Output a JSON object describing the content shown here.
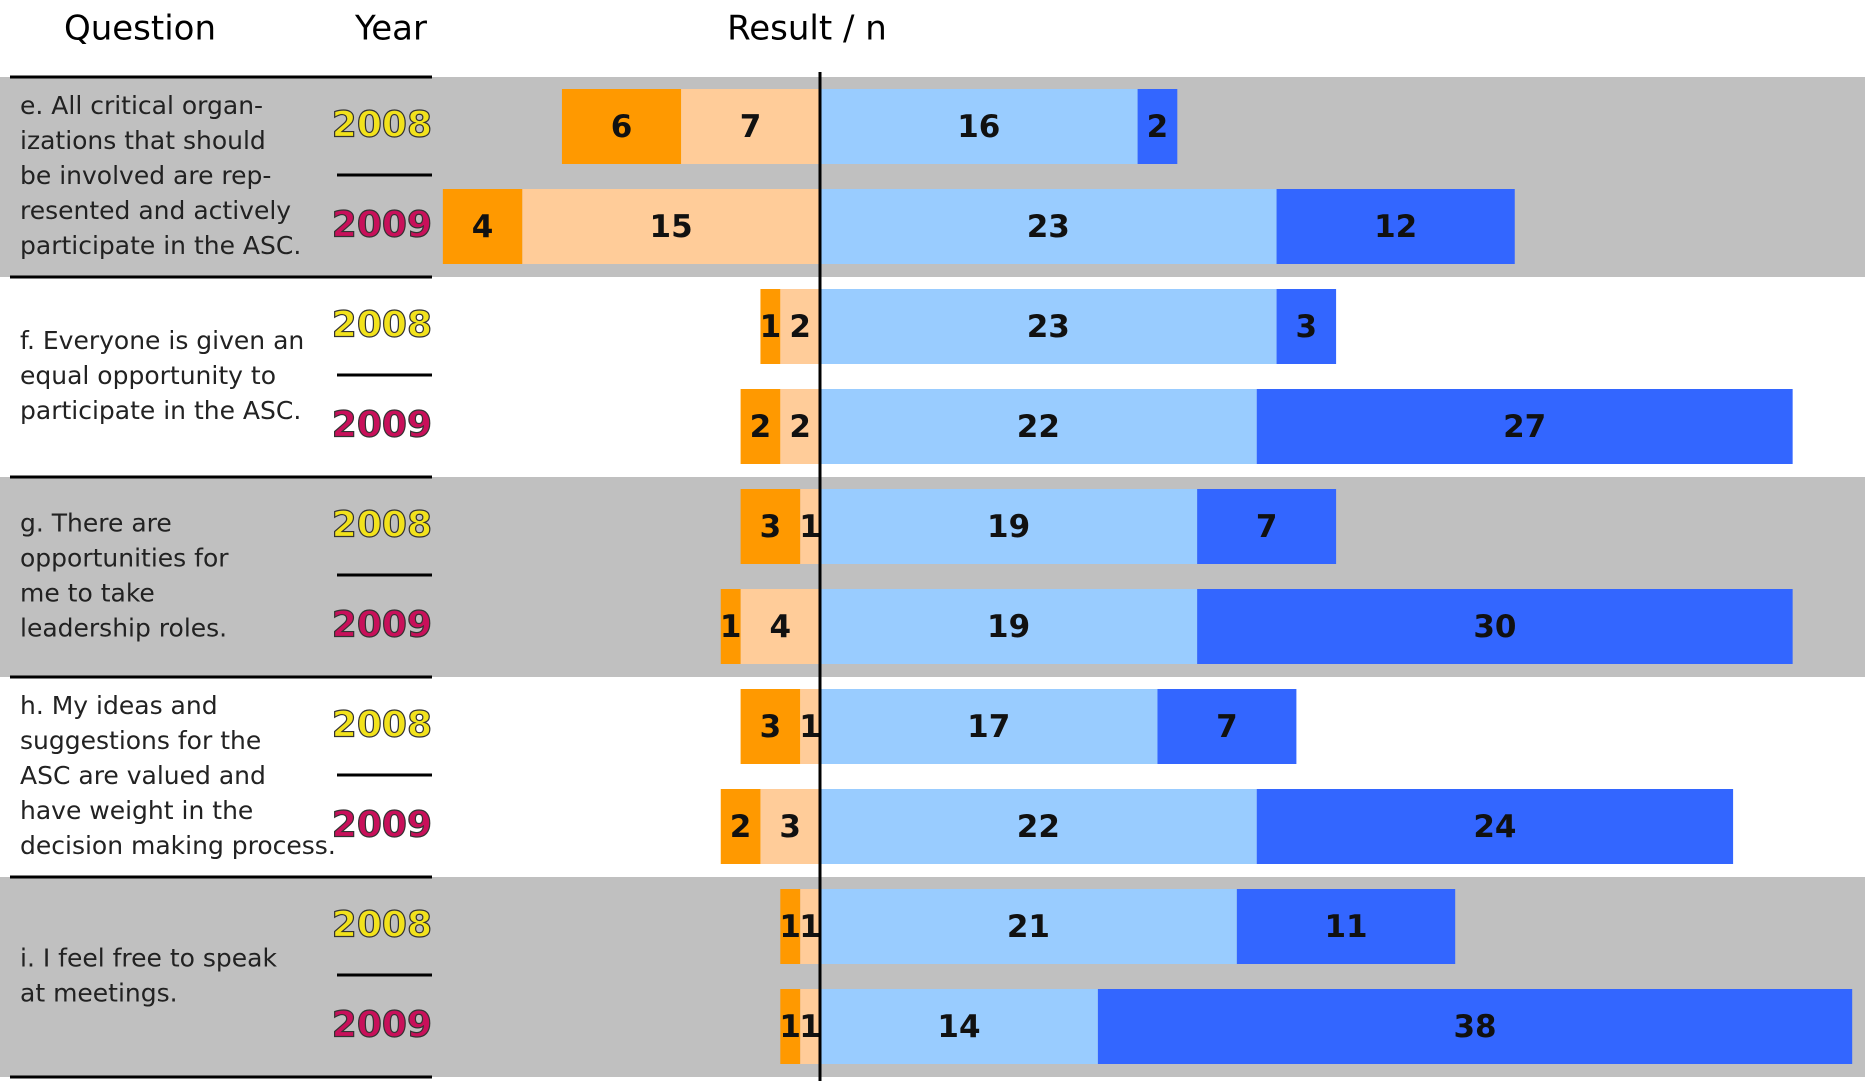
{
  "chart_data": {
    "type": "diverging_bar",
    "headers": [
      "Question",
      "Year",
      "Result / n"
    ],
    "questions": [
      [
        "e. All critical organ-",
        "izations that should",
        "be involved are rep-",
        "resented and actively",
        "participate in the ASC."
      ],
      [
        "f. Everyone is given an",
        "equal opportunity to",
        "participate in the ASC."
      ],
      [
        "g. There are",
        "opportunities for",
        "me to take",
        "leadership roles."
      ],
      [
        "h. My ideas and",
        "suggestions for the",
        "ASC are valued and",
        "have weight in the",
        "decision making process."
      ],
      [
        "i. I feel free to speak",
        "at meetings."
      ]
    ],
    "categories": [
      "2008",
      "2009",
      "2008",
      "2009",
      "2008",
      "2009",
      "2008",
      "2009",
      "2008",
      "2009"
    ],
    "category_colors": [
      "#f2e21c",
      "#c8105a",
      "#f2e21c",
      "#c8105a",
      "#f2e21c",
      "#c8105a",
      "#f2e21c",
      "#c8105a",
      "#f2e21c",
      "#c8105a"
    ],
    "series": [
      {
        "color": "#ff9900",
        "side": "left",
        "values": [
          6,
          4,
          1,
          2,
          3,
          1,
          3,
          2,
          1,
          1
        ]
      },
      {
        "color": "#ffcc99",
        "side": "left",
        "values": [
          7,
          15,
          2,
          2,
          1,
          4,
          1,
          3,
          1,
          1
        ]
      },
      {
        "color": "#99ccff",
        "side": "right",
        "values": [
          16,
          23,
          23,
          22,
          19,
          19,
          17,
          22,
          21,
          14
        ]
      },
      {
        "color": "#3366ff",
        "side": "right",
        "values": [
          2,
          12,
          3,
          27,
          7,
          30,
          7,
          24,
          11,
          38
        ]
      }
    ],
    "band_color": "#c0c0c0"
  }
}
